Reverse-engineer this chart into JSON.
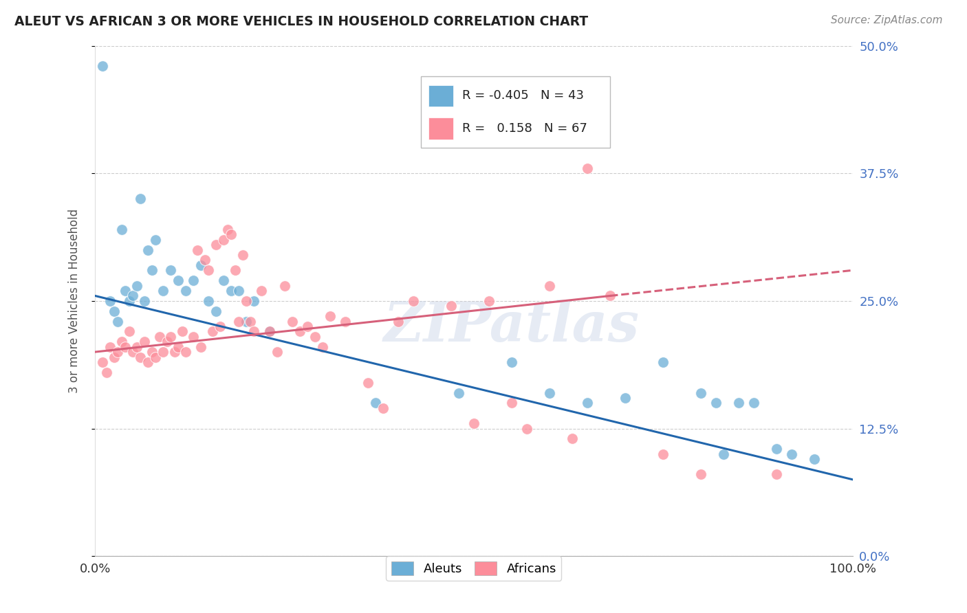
{
  "title": "ALEUT VS AFRICAN 3 OR MORE VEHICLES IN HOUSEHOLD CORRELATION CHART",
  "source": "Source: ZipAtlas.com",
  "ylabel": "3 or more Vehicles in Household",
  "xlim": [
    0.0,
    100.0
  ],
  "ylim": [
    0.0,
    50.0
  ],
  "yticks": [
    0.0,
    12.5,
    25.0,
    37.5,
    50.0
  ],
  "xticks": [
    0.0,
    20.0,
    40.0,
    60.0,
    80.0,
    100.0
  ],
  "xtick_labels": [
    "0.0%",
    "",
    "",
    "",
    "",
    "100.0%"
  ],
  "aleut_color": "#6baed6",
  "african_color": "#fc8d9a",
  "trend_aleut_color": "#2166ac",
  "trend_african_color": "#d6607a",
  "background_color": "#ffffff",
  "grid_color": "#cccccc",
  "watermark": "ZIPatlas",
  "legend_R_aleut": "R = -0.405",
  "legend_N_aleut": "N = 43",
  "legend_R_african": "R =   0.158",
  "legend_N_african": "N = 67",
  "aleut_trend_x0": 0.0,
  "aleut_trend_y0": 25.5,
  "aleut_trend_x1": 100.0,
  "aleut_trend_y1": 7.5,
  "african_trend_x0": 0.0,
  "african_trend_y0": 20.0,
  "african_trend_x1": 68.0,
  "african_trend_y1": 25.5,
  "african_trend_dash_x0": 68.0,
  "african_trend_dash_y0": 25.5,
  "african_trend_dash_x1": 100.0,
  "african_trend_dash_y1": 28.0,
  "aleut_x": [
    1.0,
    2.0,
    2.5,
    3.0,
    3.5,
    4.0,
    4.5,
    5.0,
    5.5,
    6.0,
    6.5,
    7.0,
    7.5,
    8.0,
    9.0,
    10.0,
    11.0,
    12.0,
    13.0,
    14.0,
    15.0,
    16.0,
    17.0,
    18.0,
    19.0,
    20.0,
    21.0,
    23.0,
    37.0,
    48.0,
    55.0,
    60.0,
    65.0,
    70.0,
    75.0,
    80.0,
    82.0,
    83.0,
    85.0,
    87.0,
    90.0,
    92.0,
    95.0
  ],
  "aleut_y": [
    48.0,
    25.0,
    24.0,
    23.0,
    32.0,
    26.0,
    25.0,
    25.5,
    26.5,
    35.0,
    25.0,
    30.0,
    28.0,
    31.0,
    26.0,
    28.0,
    27.0,
    26.0,
    27.0,
    28.5,
    25.0,
    24.0,
    27.0,
    26.0,
    26.0,
    23.0,
    25.0,
    22.0,
    15.0,
    16.0,
    19.0,
    16.0,
    15.0,
    15.5,
    19.0,
    16.0,
    15.0,
    10.0,
    15.0,
    15.0,
    10.5,
    10.0,
    9.5
  ],
  "african_x": [
    1.0,
    1.5,
    2.0,
    2.5,
    3.0,
    3.5,
    4.0,
    4.5,
    5.0,
    5.5,
    6.0,
    6.5,
    7.0,
    7.5,
    8.0,
    8.5,
    9.0,
    9.5,
    10.0,
    10.5,
    11.0,
    11.5,
    12.0,
    13.0,
    13.5,
    14.0,
    14.5,
    15.0,
    15.5,
    16.0,
    16.5,
    17.0,
    17.5,
    18.0,
    18.5,
    19.0,
    19.5,
    20.0,
    20.5,
    21.0,
    22.0,
    23.0,
    24.0,
    25.0,
    26.0,
    27.0,
    28.0,
    29.0,
    30.0,
    31.0,
    33.0,
    36.0,
    38.0,
    40.0,
    42.0,
    47.0,
    50.0,
    52.0,
    55.0,
    57.0,
    60.0,
    63.0,
    65.0,
    68.0,
    75.0,
    80.0,
    90.0
  ],
  "african_y": [
    19.0,
    18.0,
    20.5,
    19.5,
    20.0,
    21.0,
    20.5,
    22.0,
    20.0,
    20.5,
    19.5,
    21.0,
    19.0,
    20.0,
    19.5,
    21.5,
    20.0,
    21.0,
    21.5,
    20.0,
    20.5,
    22.0,
    20.0,
    21.5,
    30.0,
    20.5,
    29.0,
    28.0,
    22.0,
    30.5,
    22.5,
    31.0,
    32.0,
    31.5,
    28.0,
    23.0,
    29.5,
    25.0,
    23.0,
    22.0,
    26.0,
    22.0,
    20.0,
    26.5,
    23.0,
    22.0,
    22.5,
    21.5,
    20.5,
    23.5,
    23.0,
    17.0,
    14.5,
    23.0,
    25.0,
    24.5,
    13.0,
    25.0,
    15.0,
    12.5,
    26.5,
    11.5,
    38.0,
    25.5,
    10.0,
    8.0,
    8.0
  ]
}
